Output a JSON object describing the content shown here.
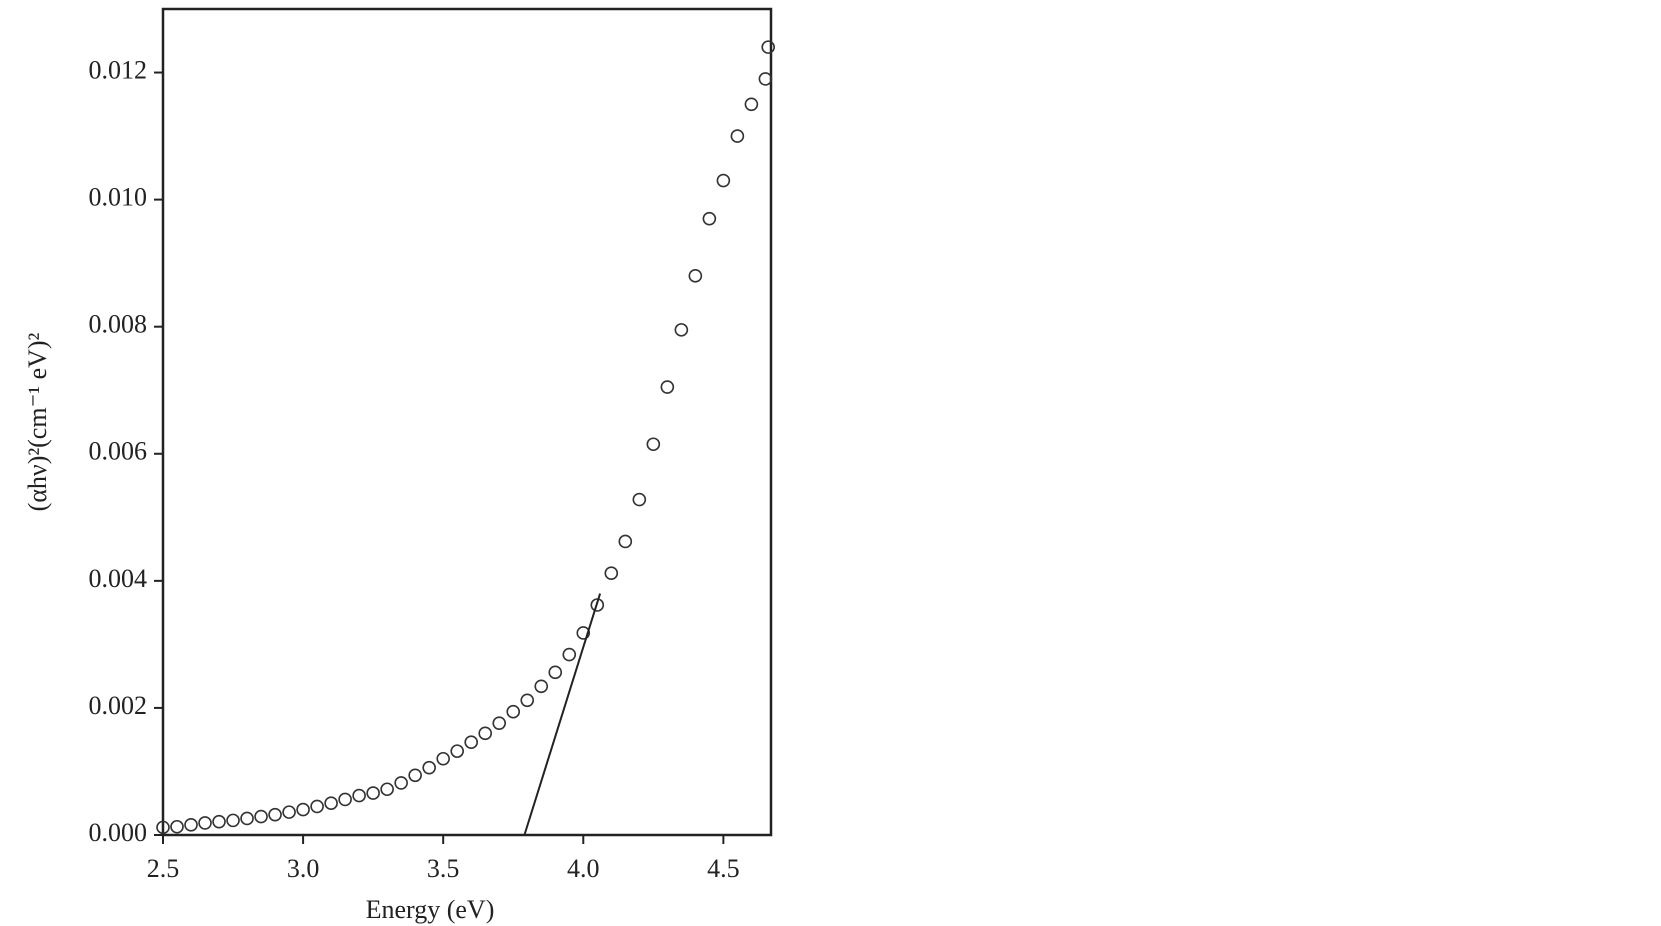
{
  "chart_data": {
    "type": "scatter",
    "xlabel": "Energy (eV)",
    "ylabel": "(αhν)²(cm⁻¹ eV)²",
    "xlim": [
      2.5,
      4.67
    ],
    "ylim": [
      0,
      0.013
    ],
    "xticks": [
      2.5,
      {
        "value": 3.0,
        "label": "3.0"
      },
      3.5,
      {
        "value": 4.0,
        "label": "4.0"
      },
      4.5
    ],
    "yticks": [
      {
        "value": 0,
        "label": "0.000"
      },
      {
        "value": 0.002,
        "label": "0.002"
      },
      {
        "value": 0.004,
        "label": "0.004"
      },
      {
        "value": 0.006,
        "label": "0.006"
      },
      {
        "value": 0.008,
        "label": "0.008"
      },
      {
        "value": 0.01,
        "label": "0.010"
      },
      {
        "value": 0.012,
        "label": "0.012"
      }
    ],
    "color": "#333333",
    "x": [
      2.5,
      2.55,
      2.6,
      2.65,
      2.7,
      2.75,
      2.8,
      2.85,
      2.9,
      2.95,
      3.0,
      3.05,
      3.1,
      3.15,
      3.2,
      3.25,
      3.3,
      3.35,
      3.4,
      3.45,
      3.5,
      3.55,
      3.6,
      3.65,
      3.7,
      3.75,
      3.8,
      3.85,
      3.9,
      3.95,
      4.0,
      4.05,
      4.1,
      4.15,
      4.2,
      4.25,
      4.3,
      4.35,
      4.4,
      4.45,
      4.5,
      4.55,
      4.6,
      4.65,
      4.66
    ],
    "values": [
      0.00012,
      0.00013,
      0.00016,
      0.00019,
      0.00021,
      0.00023,
      0.00026,
      0.00029,
      0.00032,
      0.00036,
      0.0004,
      0.00045,
      0.0005,
      0.00056,
      0.00062,
      0.00066,
      0.00072,
      0.00082,
      0.00094,
      0.00106,
      0.0012,
      0.00132,
      0.00146,
      0.0016,
      0.00176,
      0.00194,
      0.00212,
      0.00234,
      0.00256,
      0.00284,
      0.00318,
      0.00362,
      0.00412,
      0.00462,
      0.00528,
      0.00615,
      0.00705,
      0.00795,
      0.0088,
      0.0097,
      0.0103,
      0.011,
      0.0115,
      0.0119,
      0.0124
    ],
    "fit_line": {
      "color": "#222222",
      "x": [
        3.79,
        4.06
      ],
      "values": [
        0,
        0.0038
      ]
    }
  }
}
